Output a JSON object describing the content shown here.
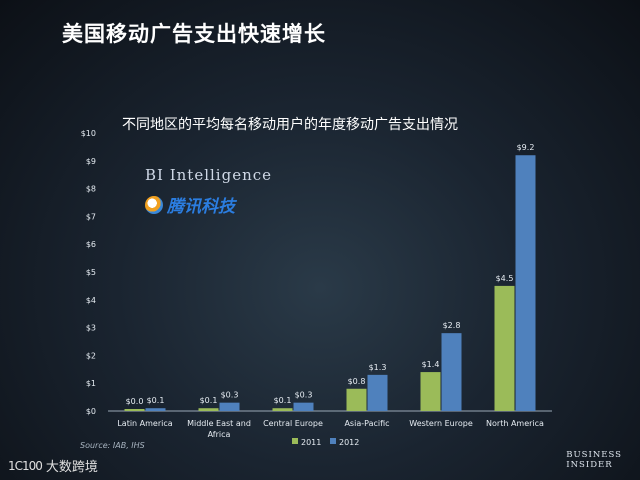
{
  "slide": {
    "title": "美国移动广告支出快速增长",
    "logo_bi": "BI Intelligence",
    "logo_tencent": "腾讯科技",
    "source": "Source: IAB, IHS",
    "footer_line1": "BUSINESS",
    "footer_line2": "INSIDER",
    "watermark_mark": "1C100",
    "watermark_text": "大数跨境"
  },
  "chart_data": {
    "type": "bar",
    "title": "不同地区的平均每名移动用户的年度移动广告支出情况",
    "xlabel": "",
    "ylabel": "",
    "ylim": [
      0,
      10
    ],
    "yticks": [
      "$0",
      "$1",
      "$2",
      "$3",
      "$4",
      "$5",
      "$6",
      "$7",
      "$8",
      "$9",
      "$10"
    ],
    "grid": false,
    "legend_position": "bottom",
    "categories": [
      [
        "Latin America"
      ],
      [
        "Middle East and",
        "Africa"
      ],
      [
        "Central Europe"
      ],
      [
        "Asia-Pacific"
      ],
      [
        "Western Europe"
      ],
      [
        "North America"
      ]
    ],
    "series": [
      {
        "name": "2011",
        "color": "#9bbb59",
        "values": [
          0.0,
          0.1,
          0.1,
          0.8,
          1.4,
          4.5
        ],
        "labels": [
          "$0.0",
          "$0.1",
          "$0.1",
          "$0.8",
          "$1.4",
          "$4.5"
        ]
      },
      {
        "name": "2012",
        "color": "#4f81bd",
        "values": [
          0.1,
          0.3,
          0.3,
          1.3,
          2.8,
          9.2
        ],
        "labels": [
          "$0.1",
          "$0.3",
          "$0.3",
          "$1.3",
          "$2.8",
          "$9.2"
        ]
      }
    ]
  }
}
